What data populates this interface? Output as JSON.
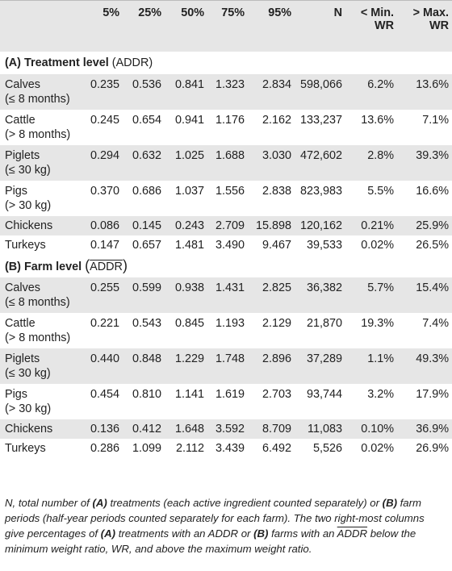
{
  "headers": [
    "",
    "5%",
    "25%",
    "50%",
    "75%",
    "95%",
    "N",
    "< Min. WR",
    "> Max. WR"
  ],
  "sectionA": {
    "bold": "(A) Treatment level",
    "normal": "(ADDR)"
  },
  "rowsA": [
    {
      "name": "Calves",
      "sub": "(≤ 8 months)",
      "vals": [
        "0.235",
        "0.536",
        "0.841",
        "1.323",
        "2.834",
        "598,066",
        "6.2%",
        "13.6%"
      ]
    },
    {
      "name": "Cattle",
      "sub": "(> 8 months)",
      "vals": [
        "0.245",
        "0.654",
        "0.941",
        "1.176",
        "2.162",
        "133,237",
        "13.6%",
        "7.1%"
      ]
    },
    {
      "name": "Piglets",
      "sub": "(≤ 30 kg)",
      "vals": [
        "0.294",
        "0.632",
        "1.025",
        "1.688",
        "3.030",
        "472,602",
        "2.8%",
        "39.3%"
      ]
    },
    {
      "name": "Pigs",
      "sub": "(> 30 kg)",
      "vals": [
        "0.370",
        "0.686",
        "1.037",
        "1.556",
        "2.838",
        "823,983",
        "5.5%",
        "16.6%"
      ]
    },
    {
      "name": "Chickens",
      "sub": "",
      "vals": [
        "0.086",
        "0.145",
        "0.243",
        "2.709",
        "15.898",
        "120,162",
        "0.21%",
        "25.9%"
      ]
    },
    {
      "name": "Turkeys",
      "sub": "",
      "vals": [
        "0.147",
        "0.657",
        "1.481",
        "3.490",
        "9.467",
        "39,533",
        "0.02%",
        "26.5%"
      ]
    }
  ],
  "sectionB": {
    "bold": "(B) Farm level",
    "normal": "ADDR"
  },
  "rowsB": [
    {
      "name": "Calves",
      "sub": "(≤ 8 months)",
      "vals": [
        "0.255",
        "0.599",
        "0.938",
        "1.431",
        "2.825",
        "36,382",
        "5.7%",
        "15.4%"
      ]
    },
    {
      "name": "Cattle",
      "sub": "(> 8 months)",
      "vals": [
        "0.221",
        "0.543",
        "0.845",
        "1.193",
        "2.129",
        "21,870",
        "19.3%",
        "7.4%"
      ]
    },
    {
      "name": "Piglets",
      "sub": "(≤ 30 kg)",
      "vals": [
        "0.440",
        "0.848",
        "1.229",
        "1.748",
        "2.896",
        "37,289",
        "1.1%",
        "49.3%"
      ]
    },
    {
      "name": "Pigs",
      "sub": "(> 30 kg)",
      "vals": [
        "0.454",
        "0.810",
        "1.141",
        "1.619",
        "2.703",
        "93,744",
        "3.2%",
        "17.9%"
      ]
    },
    {
      "name": "Chickens",
      "sub": "",
      "vals": [
        "0.136",
        "0.412",
        "1.648",
        "3.592",
        "8.709",
        "11,083",
        "0.10%",
        "36.9%"
      ]
    },
    {
      "name": "Turkeys",
      "sub": "",
      "vals": [
        "0.286",
        "1.099",
        "2.112",
        "3.439",
        "6.492",
        "5,526",
        "0.02%",
        "26.9%"
      ]
    }
  ],
  "footnote": {
    "p1": "N, total number of ",
    "a1": "(A)",
    "p2": " treatments (each active ingredient counted separately) or ",
    "b1": "(B)",
    "p3": " farm periods (half-year periods counted separately for each farm). The two right-most columns give percentages of ",
    "a2": "(A)",
    "p4": " treatments with an ADDR or ",
    "b2": "(B)",
    "p5": " farms with an ",
    "addr": "ADDR",
    "p6": " below the minimum weight ratio, WR, and above the maximum weight ratio."
  }
}
